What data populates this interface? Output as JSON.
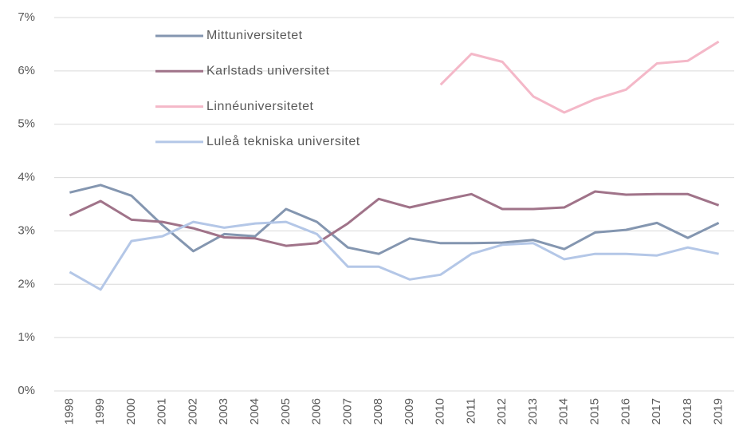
{
  "chart_data": {
    "type": "line",
    "categories": [
      "1998",
      "1999",
      "2000",
      "2001",
      "2002",
      "2003",
      "2004",
      "2005",
      "2006",
      "2007",
      "2008",
      "2009",
      "2010",
      "2011",
      "2012",
      "2013",
      "2014",
      "2015",
      "2016",
      "2017",
      "2018",
      "2019"
    ],
    "series": [
      {
        "name": "Mittuniversitetet",
        "color": "#8496b0",
        "values": [
          3.72,
          3.86,
          3.66,
          3.11,
          2.62,
          2.94,
          2.9,
          3.41,
          3.17,
          2.69,
          2.57,
          2.86,
          2.77,
          2.77,
          2.78,
          2.83,
          2.66,
          2.97,
          3.02,
          3.15,
          2.87,
          3.15
        ]
      },
      {
        "name": "Karlstads universitet",
        "color": "#a07389",
        "values": [
          3.29,
          3.56,
          3.21,
          3.17,
          3.05,
          2.88,
          2.86,
          2.72,
          2.77,
          3.14,
          3.6,
          3.44,
          3.57,
          3.69,
          3.41,
          3.41,
          3.44,
          3.74,
          3.68,
          3.69,
          3.69,
          3.48
        ]
      },
      {
        "name": "Linnéuniversitetet",
        "color": "#f4b8c8",
        "values": [
          null,
          null,
          null,
          null,
          null,
          null,
          null,
          null,
          null,
          null,
          null,
          null,
          5.74,
          6.32,
          6.17,
          5.52,
          5.22,
          5.47,
          5.65,
          6.14,
          6.19,
          6.55
        ]
      },
      {
        "name": "Luleå tekniska universitet",
        "color": "#b4c7e7",
        "values": [
          2.23,
          1.9,
          2.81,
          2.9,
          3.17,
          3.06,
          3.14,
          3.17,
          2.94,
          2.33,
          2.33,
          2.09,
          2.18,
          2.57,
          2.74,
          2.77,
          2.47,
          2.57,
          2.57,
          2.54,
          2.69,
          2.57
        ]
      }
    ],
    "ylim": [
      0,
      7
    ],
    "yticks": [
      {
        "value": 0,
        "label": "0%"
      },
      {
        "value": 1,
        "label": "1%"
      },
      {
        "value": 2,
        "label": "2%"
      },
      {
        "value": 3,
        "label": "3%"
      },
      {
        "value": 4,
        "label": "4%"
      },
      {
        "value": 5,
        "label": "5%"
      },
      {
        "value": 6,
        "label": "6%"
      },
      {
        "value": 7,
        "label": "7%"
      }
    ],
    "grid": true,
    "legend": "upper left"
  }
}
